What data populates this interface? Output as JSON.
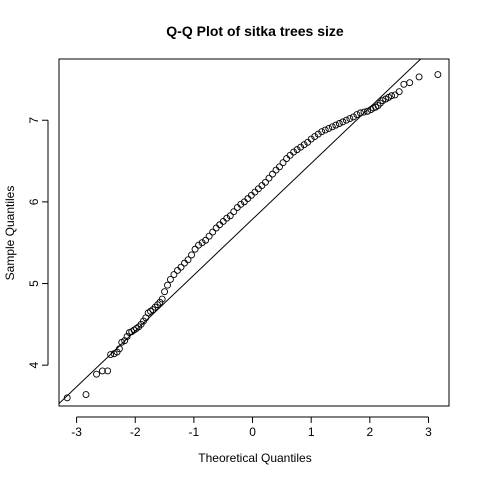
{
  "chart_data": {
    "type": "scatter",
    "title": "Q-Q Plot of sitka trees size",
    "xlabel": "Theoretical Quantiles",
    "ylabel": "Sample Quantiles",
    "xlim": [
      -3.3,
      3.35
    ],
    "ylim": [
      3.5,
      7.75
    ],
    "x_ticks": [
      -3,
      -2,
      -1,
      0,
      1,
      2,
      3
    ],
    "y_ticks": [
      4,
      5,
      6,
      7
    ],
    "grid": false,
    "legend": "none",
    "point_style": "open circle",
    "reference_line": {
      "x": [
        -3.3,
        3.35
      ],
      "y": [
        3.53,
        8.08
      ]
    },
    "x": [
      -3.16,
      -2.84,
      -2.66,
      -2.56,
      -2.47,
      -2.42,
      -2.36,
      -2.31,
      -2.27,
      -2.23,
      -2.18,
      -2.14,
      -2.1,
      -2.06,
      -2.02,
      -1.98,
      -1.94,
      -1.9,
      -1.86,
      -1.82,
      -1.78,
      -1.74,
      -1.7,
      -1.66,
      -1.62,
      -1.58,
      -1.54,
      -1.5,
      -1.45,
      -1.4,
      -1.34,
      -1.28,
      -1.22,
      -1.16,
      -1.1,
      -1.04,
      -0.98,
      -0.92,
      -0.86,
      -0.8,
      -0.74,
      -0.68,
      -0.62,
      -0.56,
      -0.5,
      -0.44,
      -0.38,
      -0.32,
      -0.26,
      -0.2,
      -0.14,
      -0.08,
      -0.02,
      0.04,
      0.1,
      0.16,
      0.22,
      0.28,
      0.34,
      0.4,
      0.46,
      0.52,
      0.58,
      0.64,
      0.7,
      0.76,
      0.82,
      0.88,
      0.94,
      1.0,
      1.06,
      1.12,
      1.18,
      1.24,
      1.3,
      1.36,
      1.42,
      1.48,
      1.54,
      1.6,
      1.66,
      1.72,
      1.78,
      1.84,
      1.9,
      1.96,
      2.02,
      2.06,
      2.1,
      2.14,
      2.18,
      2.22,
      2.27,
      2.32,
      2.37,
      2.43,
      2.5,
      2.58,
      2.68,
      2.84,
      3.16
    ],
    "y": [
      3.6,
      3.64,
      3.89,
      3.93,
      3.93,
      4.13,
      4.14,
      4.16,
      4.2,
      4.28,
      4.3,
      4.35,
      4.4,
      4.41,
      4.43,
      4.45,
      4.47,
      4.5,
      4.54,
      4.58,
      4.64,
      4.66,
      4.68,
      4.71,
      4.74,
      4.77,
      4.81,
      4.9,
      4.98,
      5.05,
      5.11,
      5.16,
      5.2,
      5.25,
      5.29,
      5.35,
      5.42,
      5.47,
      5.5,
      5.53,
      5.58,
      5.63,
      5.68,
      5.72,
      5.76,
      5.8,
      5.83,
      5.88,
      5.93,
      5.97,
      6.0,
      6.04,
      6.08,
      6.12,
      6.16,
      6.2,
      6.24,
      6.29,
      6.34,
      6.39,
      6.43,
      6.48,
      6.53,
      6.57,
      6.61,
      6.64,
      6.67,
      6.7,
      6.73,
      6.77,
      6.8,
      6.83,
      6.86,
      6.88,
      6.9,
      6.92,
      6.94,
      6.96,
      6.98,
      7.0,
      7.02,
      7.04,
      7.07,
      7.09,
      7.1,
      7.11,
      7.13,
      7.15,
      7.16,
      7.18,
      7.21,
      7.24,
      7.26,
      7.28,
      7.3,
      7.31,
      7.35,
      7.44,
      7.46,
      7.53,
      7.56
    ]
  }
}
